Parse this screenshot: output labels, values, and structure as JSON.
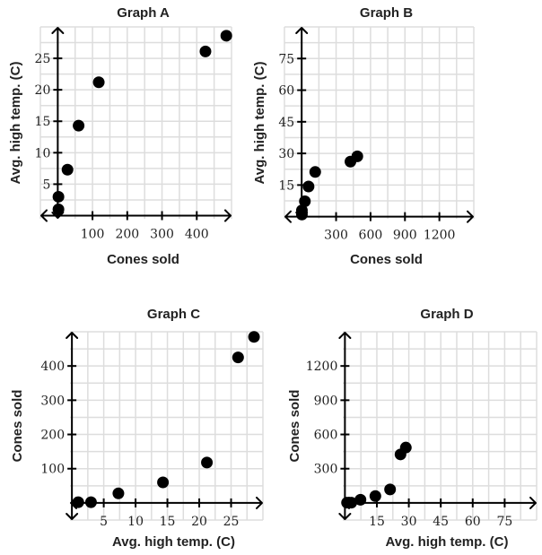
{
  "chart_data": [
    {
      "type": "scatter",
      "title": "Graph A",
      "xlabel": "Cones sold",
      "ylabel": "Avg. high temp. (C)",
      "xlim": [
        -50,
        500
      ],
      "ylim": [
        -0.5,
        30
      ],
      "xgrid_step": 50,
      "ygrid_step": 2.5,
      "xticks": [
        100,
        200,
        300,
        400
      ],
      "yticks": [
        5,
        10,
        15,
        20,
        25
      ],
      "grid": true,
      "x": [
        2,
        2,
        28,
        60,
        118,
        425,
        485
      ],
      "y": [
        1,
        3,
        7.3,
        14.3,
        21.2,
        26.1,
        28.6
      ]
    },
    {
      "type": "scatter",
      "title": "Graph B",
      "xlabel": "Cones sold",
      "ylabel": "Avg. high temp. (C)",
      "xlim": [
        -150,
        1500
      ],
      "ylim": [
        -1,
        90
      ],
      "xgrid_step": 150,
      "ygrid_step": 7.5,
      "xticks": [
        300,
        600,
        900,
        1200
      ],
      "yticks": [
        15,
        30,
        45,
        60,
        75
      ],
      "grid": true,
      "x": [
        2,
        2,
        28,
        60,
        118,
        425,
        485
      ],
      "y": [
        1,
        3,
        7.3,
        14.3,
        21.2,
        26.1,
        28.6
      ]
    },
    {
      "type": "scatter",
      "title": "Graph C",
      "xlabel": "Avg. high temp. (C)",
      "ylabel": "Cones sold",
      "xlim": [
        -0.3,
        30
      ],
      "ylim": [
        -50,
        500
      ],
      "xgrid_step": 2.5,
      "ygrid_step": 50,
      "xticks": [
        5,
        10,
        15,
        20,
        25
      ],
      "yticks": [
        100,
        200,
        300,
        400
      ],
      "grid": true,
      "x": [
        1,
        3,
        7.3,
        14.3,
        21.2,
        26.1,
        28.6
      ],
      "y": [
        2,
        2,
        28,
        60,
        118,
        425,
        485
      ]
    },
    {
      "type": "scatter",
      "title": "Graph D",
      "xlabel": "Avg. high temp. (C)",
      "ylabel": "Cones sold",
      "xlim": [
        -1,
        90
      ],
      "ylim": [
        -150,
        1500
      ],
      "xgrid_step": 7.5,
      "ygrid_step": 150,
      "xticks": [
        15,
        30,
        45,
        60,
        75
      ],
      "yticks": [
        300,
        600,
        900,
        1200
      ],
      "grid": true,
      "x": [
        1,
        3,
        7.3,
        14.3,
        21.2,
        26.1,
        28.6
      ],
      "y": [
        2,
        2,
        28,
        60,
        118,
        425,
        485
      ]
    }
  ],
  "colors": {
    "grid": "#dddddd",
    "axis": "#000000",
    "point": "#000000"
  }
}
